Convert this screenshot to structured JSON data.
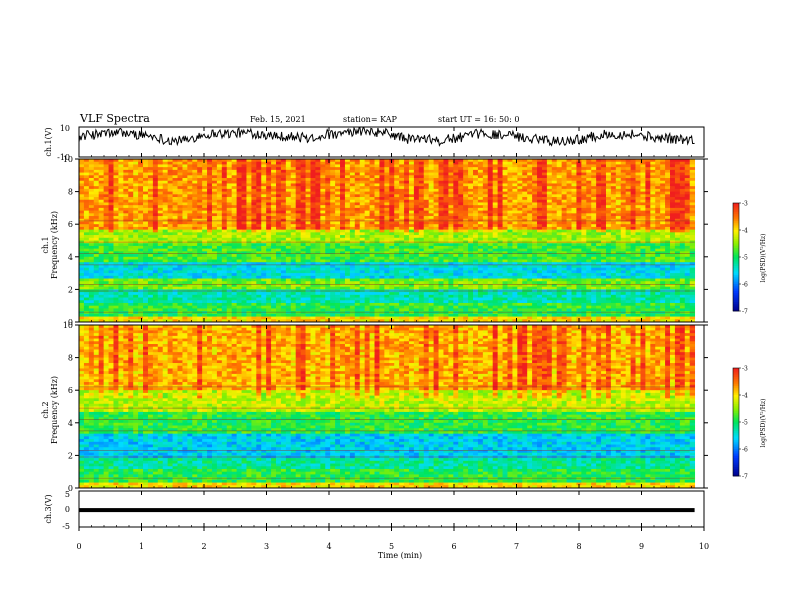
{
  "header": {
    "title": "VLF Spectra",
    "date": "Feb. 15, 2021",
    "station": "station= KAP",
    "start": "start  UT  =   16: 50: 0"
  },
  "chart_data": [
    {
      "type": "line",
      "name": "ch1-waveform",
      "ylabel": "ch.1(V)",
      "ylim": [
        -10,
        10
      ],
      "yticks": [
        "10",
        "-10"
      ],
      "xlim": [
        0,
        9.85
      ],
      "baseline": 3.5,
      "amplitude": 6.5,
      "color": "#000000"
    },
    {
      "type": "heatmap",
      "name": "ch1-spectrogram",
      "ylabel_line1": "ch.1",
      "ylabel_line2": "Frequency  (kHz)",
      "ylim": [
        0,
        10
      ],
      "yticks": [
        "0",
        "2",
        "4",
        "6",
        "8",
        "10"
      ],
      "xlim": [
        0,
        9.85
      ],
      "bands_khz": [
        {
          "from": 0,
          "to": 0.3,
          "log_psd": -4.0
        },
        {
          "from": 0.3,
          "to": 1.2,
          "log_psd": -4.9
        },
        {
          "from": 1.2,
          "to": 2.0,
          "log_psd": -5.3
        },
        {
          "from": 2.0,
          "to": 2.6,
          "log_psd": -4.6
        },
        {
          "from": 2.6,
          "to": 3.6,
          "log_psd": -5.5
        },
        {
          "from": 3.6,
          "to": 4.8,
          "log_psd": -4.8
        },
        {
          "from": 4.8,
          "to": 5.6,
          "log_psd": -4.4
        },
        {
          "from": 5.6,
          "to": 10,
          "log_psd": -3.7
        }
      ],
      "colorbar": {
        "label": "log(PSD)(V²/Hz)",
        "min": -7,
        "max": -3,
        "ticks": [
          "-3",
          "-4",
          "-5",
          "-6",
          "-7"
        ]
      }
    },
    {
      "type": "heatmap",
      "name": "ch2-spectrogram",
      "ylabel_line1": "ch.2",
      "ylabel_line2": "Frequency  (kHz)",
      "ylim": [
        0,
        10
      ],
      "yticks": [
        "0",
        "2",
        "4",
        "6",
        "8",
        "10"
      ],
      "xlim": [
        0,
        9.85
      ],
      "bands_khz": [
        {
          "from": 0,
          "to": 0.3,
          "log_psd": -4.0
        },
        {
          "from": 0.3,
          "to": 1.2,
          "log_psd": -4.9
        },
        {
          "from": 1.2,
          "to": 1.9,
          "log_psd": -5.2
        },
        {
          "from": 1.9,
          "to": 3.3,
          "log_psd": -5.6
        },
        {
          "from": 3.3,
          "to": 4.6,
          "log_psd": -4.9
        },
        {
          "from": 4.6,
          "to": 6.0,
          "log_psd": -4.3
        },
        {
          "from": 6.0,
          "to": 10,
          "log_psd": -3.8
        }
      ],
      "colorbar": {
        "label": "log(PSD)(V²/Hz)",
        "min": -7,
        "max": -3,
        "ticks": [
          "-3",
          "-4",
          "-5",
          "-6",
          "-7"
        ]
      }
    },
    {
      "type": "line",
      "name": "ch3-waveform",
      "ylabel": "ch.3(V)",
      "ylim": [
        -5,
        5
      ],
      "yticks": [
        "5",
        "0",
        "-5"
      ],
      "xlim": [
        0,
        9.85
      ],
      "level": -0.3,
      "thickness": 1.1,
      "color": "#000000"
    }
  ],
  "xaxis": {
    "label": "Time  (min)",
    "range": [
      0,
      10
    ],
    "ticks": [
      "0",
      "1",
      "2",
      "3",
      "4",
      "5",
      "6",
      "7",
      "8",
      "9",
      "10"
    ]
  }
}
